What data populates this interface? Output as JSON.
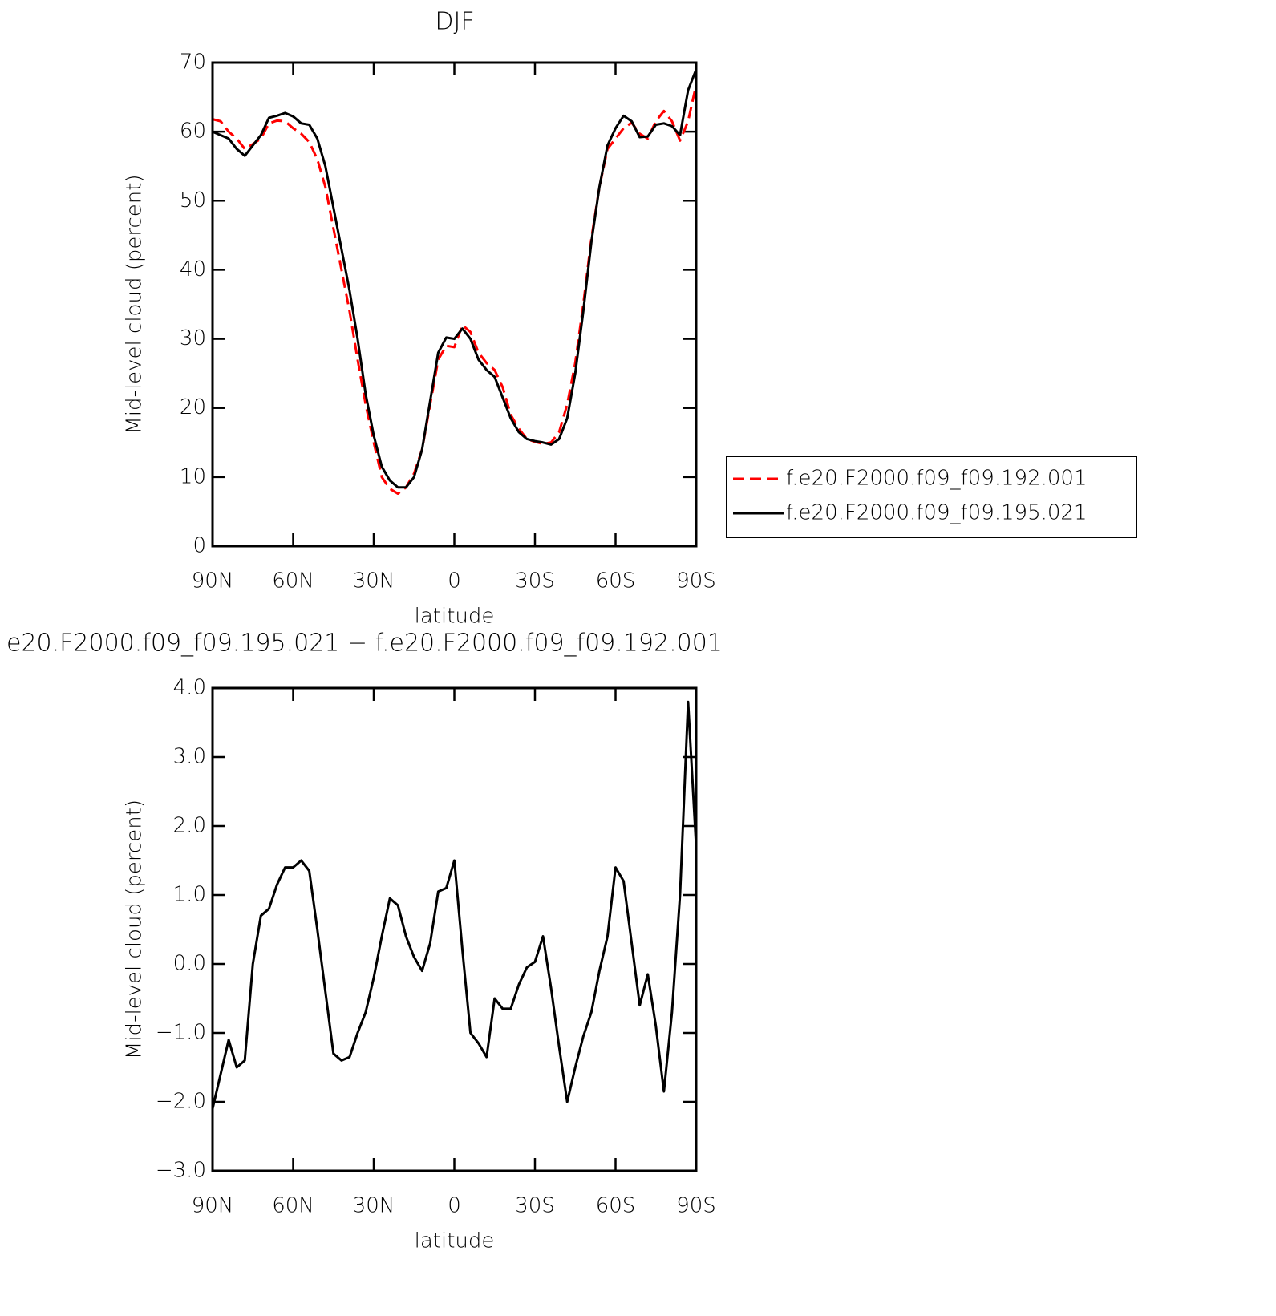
{
  "chart_data": [
    {
      "type": "line",
      "title": "DJF",
      "x_label": "latitude",
      "y_label": "Mid-level cloud (percent)",
      "x": [
        90,
        87,
        84,
        81,
        78,
        75,
        72,
        69,
        66,
        63,
        60,
        57,
        54,
        51,
        48,
        45,
        42,
        39,
        36,
        33,
        30,
        27,
        24,
        21,
        18,
        15,
        12,
        9,
        6,
        3,
        0,
        -3,
        -6,
        -9,
        -12,
        -15,
        -18,
        -21,
        -24,
        -27,
        -30,
        -33,
        -36,
        -39,
        -42,
        -45,
        -48,
        -51,
        -54,
        -57,
        -60,
        -63,
        -66,
        -69,
        -72,
        -75,
        -78,
        -81,
        -84,
        -87,
        -90
      ],
      "xlim": [
        90,
        -90
      ],
      "xticks": [
        {
          "value": 90,
          "label": "90N"
        },
        {
          "value": 60,
          "label": "60N"
        },
        {
          "value": 30,
          "label": "30N"
        },
        0,
        {
          "value": -30,
          "label": "30S"
        },
        {
          "value": -60,
          "label": "60S"
        },
        {
          "value": -90,
          "label": "90S"
        }
      ],
      "ylim": [
        0,
        70
      ],
      "yticks": [
        0,
        10,
        20,
        30,
        40,
        50,
        60,
        70
      ],
      "legend": "right",
      "series": [
        {
          "name": "f.e20.F2000.f09_f09.192.001",
          "color": "#ff0000",
          "dashed": true,
          "values": [
            61.8,
            61.5,
            60,
            59,
            57.5,
            58.2,
            59,
            61.2,
            61.6,
            61.5,
            60.5,
            59.7,
            58.5,
            56,
            52,
            46,
            40,
            34,
            27,
            20.5,
            15,
            10,
            8.3,
            7.6,
            8.5,
            10.5,
            14,
            20.5,
            27,
            29,
            28.8,
            32,
            31,
            28,
            26.5,
            25.5,
            23,
            19,
            17,
            15.5,
            15.1,
            14.8,
            15,
            16.5,
            20.5,
            26.5,
            35,
            44.5,
            52,
            57.5,
            59,
            60.5,
            61.3,
            59.7,
            59,
            61.5,
            63,
            61.5,
            58.7,
            61.5,
            66.8
          ]
        },
        {
          "name": "f.e20.F2000.f09_f09.195.021",
          "color": "#000000",
          "dashed": false,
          "values": [
            60,
            59.5,
            59,
            57.5,
            56.5,
            58,
            59.5,
            62,
            62.3,
            62.7,
            62.2,
            61.2,
            61,
            59,
            55,
            49,
            43,
            37,
            30,
            22,
            16,
            11.5,
            9.5,
            8.5,
            8.5,
            10,
            14,
            21,
            28,
            30.2,
            30,
            31.5,
            30,
            27,
            25.5,
            24.5,
            21.5,
            18.5,
            16.5,
            15.5,
            15.2,
            15,
            14.7,
            15.5,
            18.5,
            25,
            34,
            44,
            52,
            58,
            60.5,
            62.3,
            61.5,
            59.2,
            59.3,
            61,
            61.2,
            60.8,
            59.5,
            66,
            69
          ]
        }
      ]
    },
    {
      "type": "line",
      "title": "e20.F2000.f09_f09.195.021 − f.e20.F2000.f09_f09.192.001",
      "x_label": "latitude",
      "y_label": "Mid-level cloud (percent)",
      "x": [
        90,
        87,
        84,
        81,
        78,
        75,
        72,
        69,
        66,
        63,
        60,
        57,
        54,
        51,
        48,
        45,
        42,
        39,
        36,
        33,
        30,
        27,
        24,
        21,
        18,
        15,
        12,
        9,
        6,
        3,
        0,
        -3,
        -6,
        -9,
        -12,
        -15,
        -18,
        -21,
        -24,
        -27,
        -30,
        -33,
        -36,
        -39,
        -42,
        -45,
        -48,
        -51,
        -54,
        -57,
        -60,
        -63,
        -66,
        -69,
        -72,
        -75,
        -78,
        -81,
        -84,
        -87,
        -90
      ],
      "xlim": [
        90,
        -90
      ],
      "xticks": [
        {
          "value": 90,
          "label": "90N"
        },
        {
          "value": 60,
          "label": "60N"
        },
        {
          "value": 30,
          "label": "30N"
        },
        0,
        {
          "value": -30,
          "label": "30S"
        },
        {
          "value": -60,
          "label": "60S"
        },
        {
          "value": -90,
          "label": "90S"
        }
      ],
      "ylim": [
        -3,
        4
      ],
      "yticks": [
        {
          "value": -3,
          "label": "−3.0"
        },
        {
          "value": -2,
          "label": "−2.0"
        },
        {
          "value": -1,
          "label": "−1.0"
        },
        {
          "value": 0,
          "label": "0.0"
        },
        {
          "value": 1,
          "label": "1.0"
        },
        {
          "value": 2,
          "label": "2.0"
        },
        {
          "value": 3,
          "label": "3.0"
        },
        {
          "value": 4,
          "label": "4.0"
        }
      ],
      "series": [
        {
          "color": "#000000",
          "dashed": false,
          "values": [
            -2.1,
            -1.6,
            -1.1,
            -1.5,
            -1.4,
            0,
            0.7,
            0.8,
            1.15,
            1.4,
            1.4,
            1.5,
            1.35,
            0.5,
            -0.4,
            -1.3,
            -1.4,
            -1.35,
            -1,
            -0.7,
            -0.2,
            0.4,
            0.95,
            0.85,
            0.4,
            0.1,
            -0.1,
            0.3,
            1.05,
            1.1,
            1.5,
            0.2,
            -1,
            -1.15,
            -1.35,
            -0.5,
            -0.65,
            -0.65,
            -0.3,
            -0.05,
            0.03,
            0.4,
            -0.35,
            -1.2,
            -2,
            -1.5,
            -1.05,
            -0.7,
            -0.1,
            0.4,
            1.4,
            1.2,
            0.3,
            -0.6,
            -0.15,
            -0.9,
            -1.85,
            -0.7,
            1,
            3.8,
            1.7
          ]
        }
      ]
    }
  ]
}
